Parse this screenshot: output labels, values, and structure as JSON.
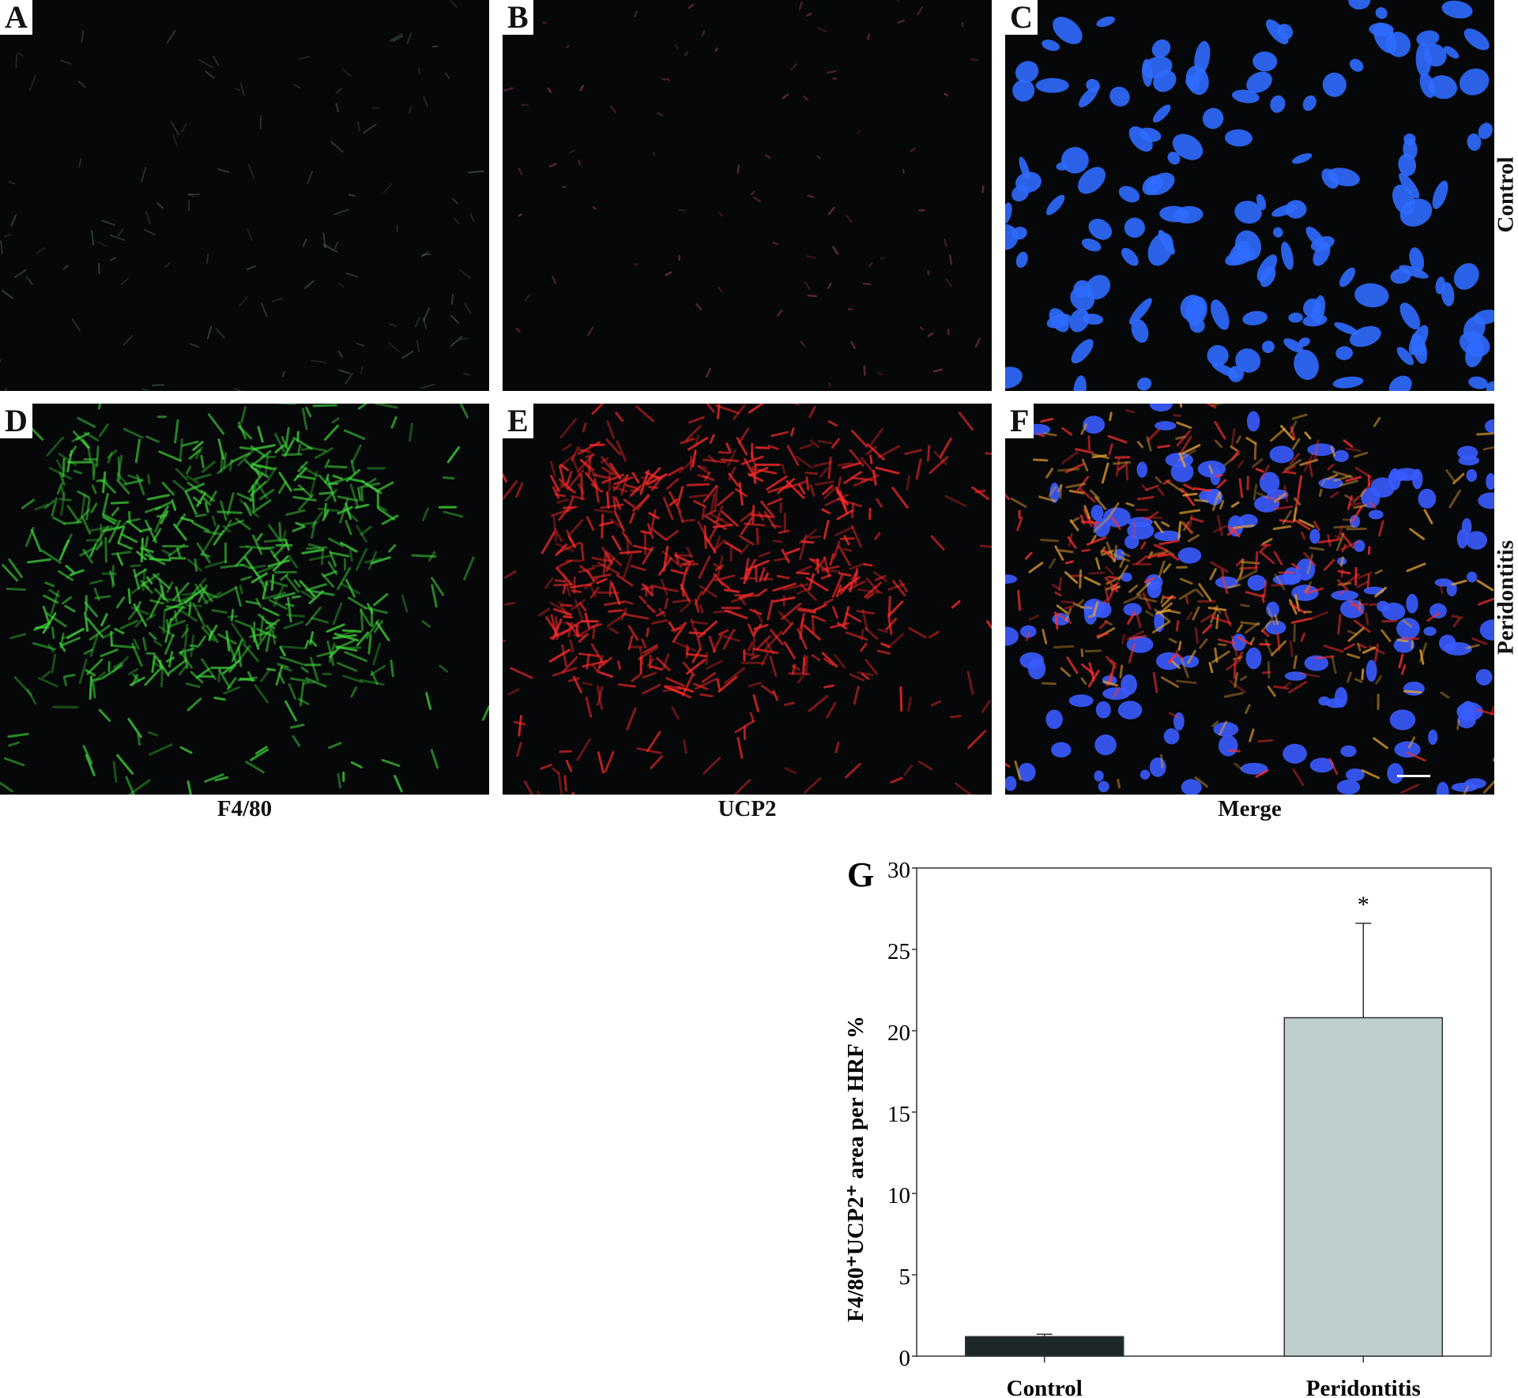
{
  "panels": [
    {
      "letter": "A",
      "stain": "F4/80",
      "group": "Control",
      "color": "#7fa890"
    },
    {
      "letter": "B",
      "stain": "UCP2",
      "group": "Control",
      "color": "#d04a8a"
    },
    {
      "letter": "C",
      "stain": "Merge",
      "group": "Control",
      "color": "#2f6bff"
    },
    {
      "letter": "D",
      "stain": "F4/80",
      "group": "Peridontitis",
      "color": "#3fd23a"
    },
    {
      "letter": "E",
      "stain": "UCP2",
      "group": "Peridontitis",
      "color": "#ff2a2a"
    },
    {
      "letter": "F",
      "stain": "Merge",
      "group": "Peridontitis",
      "color": "#3a5cff"
    }
  ],
  "column_labels": [
    "F4/80",
    "UCP2",
    "Merge"
  ],
  "row_labels": [
    "Control",
    "Peridontitis"
  ],
  "chart_data": {
    "type": "bar",
    "panel_letter": "G",
    "categories": [
      "Control",
      "Peridontitis"
    ],
    "values": [
      1.2,
      20.8
    ],
    "error": [
      0.15,
      5.8
    ],
    "colors": [
      "#1e2828",
      "#bfcfcd"
    ],
    "annotations": [
      {
        "category": "Peridontitis",
        "text": "*"
      }
    ],
    "ylabel": "F4/80⁺UCP2⁺ area per HRF %",
    "xlabel": "",
    "ylim": [
      0,
      30
    ],
    "yticks": [
      0,
      5,
      10,
      15,
      20,
      25,
      30
    ],
    "grid": false
  }
}
